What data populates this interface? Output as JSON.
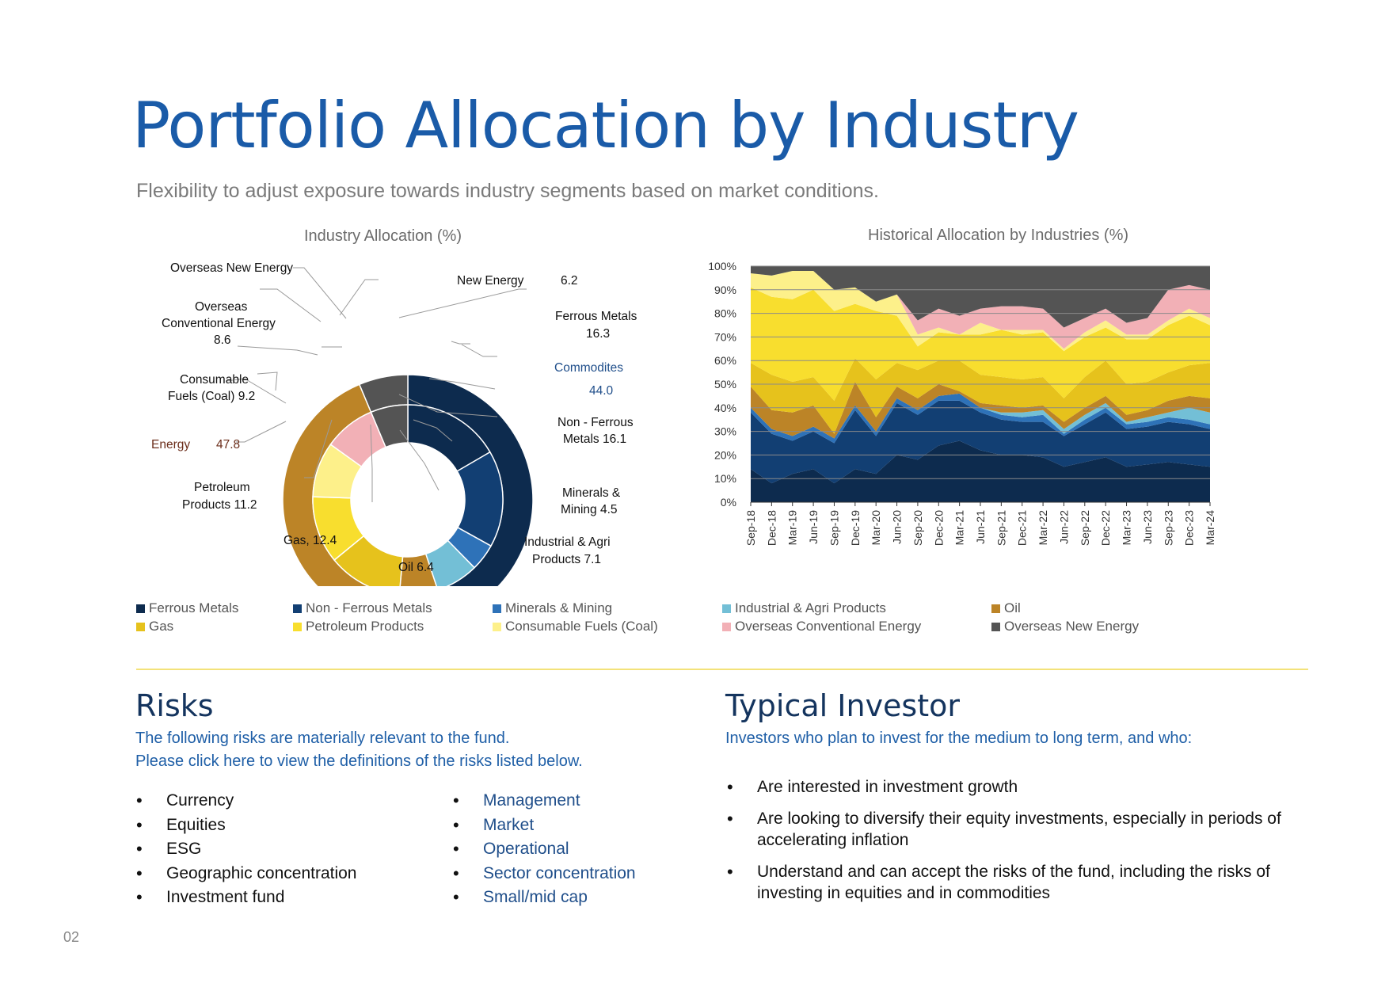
{
  "header": {
    "title": "Portfolio Allocation by Industry",
    "subtitle": "Flexibility to adjust exposure towards industry segments based on market conditions."
  },
  "colors": {
    "title_blue": "#1a5ba8",
    "ferrous_metals": "#0d2b4e",
    "non_ferrous_metals": "#123f73",
    "minerals_mining": "#2e72b8",
    "industrial_agri": "#73bfd6",
    "oil": "#bc8427",
    "gas": "#e6c21c",
    "petroleum_products": "#f8de2e",
    "consumable_fuels": "#fdf08a",
    "overseas_conventional": "#f2b0b6",
    "overseas_new_energy": "#545454",
    "divider": "#f3e27a"
  },
  "chart_data": [
    {
      "type": "pie",
      "title": "Industry Allocation (%)",
      "style": "two-level donut",
      "outer_ring": [
        {
          "name": "Commodites",
          "value": 44.0
        },
        {
          "name": "Energy",
          "value": 47.8
        },
        {
          "name": "New Energy",
          "value": 6.2
        }
      ],
      "inner_ring": [
        {
          "name": "Ferrous Metals",
          "value": 16.3
        },
        {
          "name": "Non - Ferrous Metals",
          "value": 16.1
        },
        {
          "name": "Minerals & Mining",
          "value": 4.5
        },
        {
          "name": "Industrial & Agri Products",
          "value": 7.1
        },
        {
          "name": "Oil",
          "value": 6.4
        },
        {
          "name": "Gas",
          "value": 12.4
        },
        {
          "name": "Petroleum Products",
          "value": 11.2
        },
        {
          "name": "Consumable Fuels (Coal)",
          "value": 9.2
        },
        {
          "name": "Overseas Conventional Energy",
          "value": 8.6
        },
        {
          "name": "Overseas New Energy",
          "value": null
        }
      ],
      "labels": {
        "overseas_new": "Overseas New Energy",
        "new_energy": "New Energy",
        "new_energy_val": "6.2",
        "overseas_conv_1": "Overseas",
        "overseas_conv_2": "Conventional Energy",
        "overseas_conv_val": "8.6",
        "ferrous_1": "Ferrous Metals",
        "ferrous_val": "16.3",
        "commodities": "Commodites",
        "commodities_val": "44.0",
        "coal_1": "Consumable",
        "coal_2": "Fuels (Coal)  9.2",
        "nonferrous_1": "Non - Ferrous",
        "nonferrous_2": "Metals  16.1",
        "energy": "Energy",
        "energy_val": "47.8",
        "minerals_1": "Minerals &",
        "minerals_2": "Mining  4.5",
        "petroleum_1": "Petroleum",
        "petroleum_2": "Products  11.2",
        "industrial_1": "Industrial & Agri",
        "industrial_2": "Products  7.1",
        "gas": "Gas, 12.4",
        "oil": "Oil  6.4"
      }
    },
    {
      "type": "area",
      "stacked": true,
      "percent": true,
      "title": "Historical Allocation by Industries (%)",
      "x": [
        "Sep-18",
        "Dec-18",
        "Mar-19",
        "Jun-19",
        "Sep-19",
        "Dec-19",
        "Mar-20",
        "Jun-20",
        "Sep-20",
        "Dec-20",
        "Mar-21",
        "Jun-21",
        "Sep-21",
        "Dec-21",
        "Mar-22",
        "Jun-22",
        "Sep-22",
        "Dec-22",
        "Mar-23",
        "Jun-23",
        "Sep-23",
        "Dec-23",
        "Mar-24"
      ],
      "y_ticks": [
        "0%",
        "10%",
        "20%",
        "30%",
        "40%",
        "50%",
        "60%",
        "70%",
        "80%",
        "90%",
        "100%"
      ],
      "ylim": [
        0,
        100
      ],
      "grid": true,
      "series": [
        {
          "name": "Ferrous Metals",
          "values": [
            14,
            8,
            12,
            14,
            8,
            14,
            12,
            20,
            18,
            24,
            26,
            22,
            20,
            20,
            19,
            15,
            17,
            19,
            15,
            16,
            17,
            16,
            15
          ]
        },
        {
          "name": "Non - Ferrous Metals",
          "values": [
            24,
            21,
            14,
            16,
            17,
            25,
            16,
            22,
            19,
            19,
            17,
            16,
            15,
            14,
            15,
            13,
            16,
            19,
            16,
            16,
            17,
            17,
            16
          ]
        },
        {
          "name": "Minerals & Mining",
          "values": [
            2,
            2,
            2,
            2,
            2,
            2,
            2,
            2,
            2,
            2,
            3,
            2,
            2,
            2,
            3,
            1,
            2,
            2,
            2,
            2,
            2,
            2,
            2
          ]
        },
        {
          "name": "Industrial & Agri Products",
          "values": [
            0,
            0,
            0,
            0,
            0,
            0,
            0,
            0,
            0,
            0,
            0,
            0,
            1,
            2,
            2,
            2,
            2,
            2,
            1,
            2,
            2,
            5,
            5
          ]
        },
        {
          "name": "Oil",
          "values": [
            9,
            8,
            10,
            9,
            2,
            10,
            6,
            5,
            5,
            5,
            1,
            2,
            3,
            2,
            2,
            3,
            3,
            3,
            3,
            3,
            5,
            5,
            6
          ]
        },
        {
          "name": "Gas",
          "values": [
            10,
            15,
            13,
            12,
            14,
            10,
            16,
            10,
            12,
            10,
            13,
            12,
            12,
            12,
            12,
            10,
            13,
            15,
            13,
            12,
            12,
            13,
            15
          ]
        },
        {
          "name": "Petroleum Products",
          "values": [
            32,
            33,
            35,
            37,
            38,
            23,
            29,
            20,
            10,
            12,
            11,
            17,
            20,
            19,
            19,
            20,
            17,
            14,
            19,
            18,
            20,
            21,
            16
          ]
        },
        {
          "name": "Consumable Fuels (Coal)",
          "values": [
            6,
            9,
            12,
            8,
            9,
            7,
            4,
            9,
            5,
            2,
            0,
            5,
            0,
            2,
            1,
            1,
            2,
            3,
            2,
            2,
            2,
            3,
            3
          ]
        },
        {
          "name": "Overseas Conventional Energy",
          "values": [
            0,
            0,
            0,
            0,
            0,
            0,
            0,
            0,
            6,
            8,
            8,
            6,
            10,
            10,
            9,
            9,
            6,
            5,
            5,
            7,
            13,
            10,
            12
          ]
        },
        {
          "name": "Overseas New Energy",
          "values": [
            3,
            4,
            2,
            2,
            10,
            9,
            15,
            12,
            23,
            18,
            21,
            18,
            17,
            17,
            18,
            26,
            22,
            18,
            24,
            22,
            10,
            8,
            10
          ]
        }
      ]
    }
  ],
  "legend": {
    "items": [
      "Ferrous Metals",
      "Non - Ferrous Metals",
      "Minerals & Mining",
      "Industrial & Agri Products",
      "Oil",
      "Gas",
      "Petroleum Products",
      "Consumable Fuels (Coal)",
      "Overseas Conventional Energy",
      "Overseas New Energy"
    ]
  },
  "risks": {
    "heading": "Risks",
    "intro_1": "The following risks are materially relevant to the fund.",
    "intro_2": "Please click here to view the definitions of the risks listed below.",
    "left": [
      "Currency",
      "Equities",
      "ESG",
      "Geographic concentration",
      "Investment fund"
    ],
    "right": [
      "Management",
      "Market",
      "Operational",
      "Sector concentration",
      "Small/mid cap"
    ]
  },
  "investor": {
    "heading": "Typical Investor",
    "intro": "Investors who plan to invest for the medium to long term, and who:",
    "items": [
      "Are interested in investment growth",
      "Are looking to diversify their equity investments, especially in periods of accelerating inflation",
      "Understand and can accept the risks of the fund, including the risks of investing in equities and in commodities"
    ]
  },
  "footer": {
    "page": "02"
  }
}
